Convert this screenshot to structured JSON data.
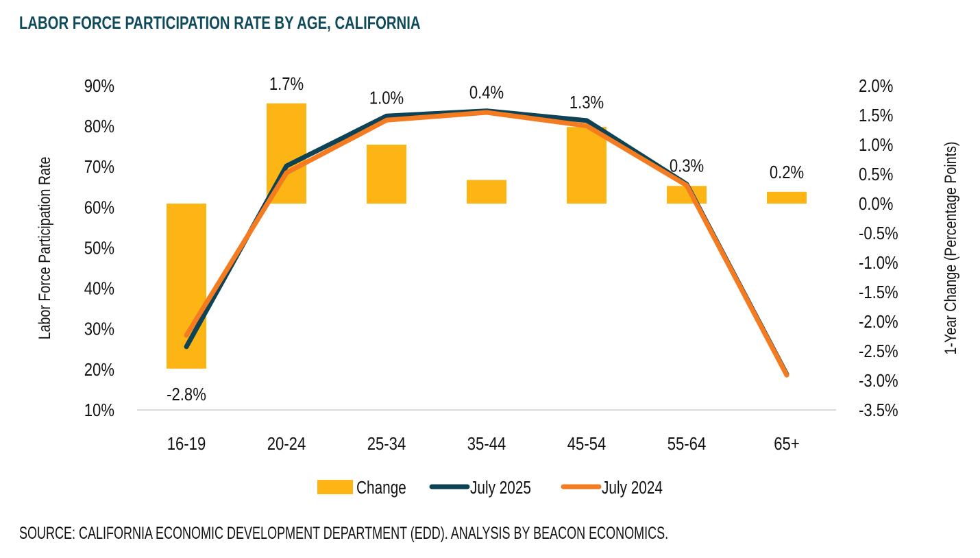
{
  "title": "LABOR FORCE PARTICIPATION RATE BY AGE, CALIFORNIA",
  "source": "SOURCE: CALIFORNIA ECONOMIC DEVELOPMENT DEPARTMENT (EDD). ANALYSIS BY BEACON ECONOMICS.",
  "colors": {
    "title": "#0f4a5c",
    "change_bar": "#fdb515",
    "july_2025": "#0e4355",
    "july_2024": "#f47b20",
    "axis_line": "#d9d9d9"
  },
  "chart_data": {
    "type": "bar+line",
    "title": "LABOR FORCE PARTICIPATION RATE BY AGE, CALIFORNIA",
    "categories": [
      "16-19",
      "20-24",
      "25-34",
      "35-44",
      "45-54",
      "55-64",
      "65+"
    ],
    "series": [
      {
        "name": "Change",
        "type": "bar",
        "axis": "right",
        "values": [
          -2.8,
          1.7,
          1.0,
          0.4,
          1.3,
          0.3,
          0.2
        ],
        "labels": [
          "-2.8%",
          "1.7%",
          "1.0%",
          "0.4%",
          "1.3%",
          "0.3%",
          "0.2%"
        ]
      },
      {
        "name": "July 2025",
        "type": "line",
        "axis": "left",
        "values": [
          25.6,
          70.2,
          82.5,
          83.8,
          81.4,
          65.7,
          18.8
        ]
      },
      {
        "name": "July 2024",
        "type": "line",
        "axis": "left",
        "values": [
          28.4,
          68.5,
          81.5,
          83.4,
          80.1,
          65.4,
          18.6
        ]
      }
    ],
    "left_axis": {
      "label": "Labor Force Participation Rate",
      "ylim": [
        10,
        90
      ],
      "ticks": [
        "90%",
        "80%",
        "70%",
        "60%",
        "50%",
        "40%",
        "30%",
        "20%",
        "10%"
      ],
      "tick_values": [
        90,
        80,
        70,
        60,
        50,
        40,
        30,
        20,
        10
      ]
    },
    "right_axis": {
      "label": "1-Year Change (Percentage Points)",
      "ylim": [
        -3.5,
        2.0
      ],
      "ticks": [
        "2.0%",
        "1.5%",
        "1.0%",
        "0.5%",
        "0.0%",
        "-0.5%",
        "-1.0%",
        "-1.5%",
        "-2.0%",
        "-2.5%",
        "-3.0%",
        "-3.5%"
      ],
      "tick_values": [
        2.0,
        1.5,
        1.0,
        0.5,
        0.0,
        -0.5,
        -1.0,
        -1.5,
        -2.0,
        -2.5,
        -3.0,
        -3.5
      ]
    },
    "grid": false,
    "legend": {
      "position": "bottom",
      "items": [
        "Change",
        "July 2025",
        "July 2024"
      ]
    }
  }
}
